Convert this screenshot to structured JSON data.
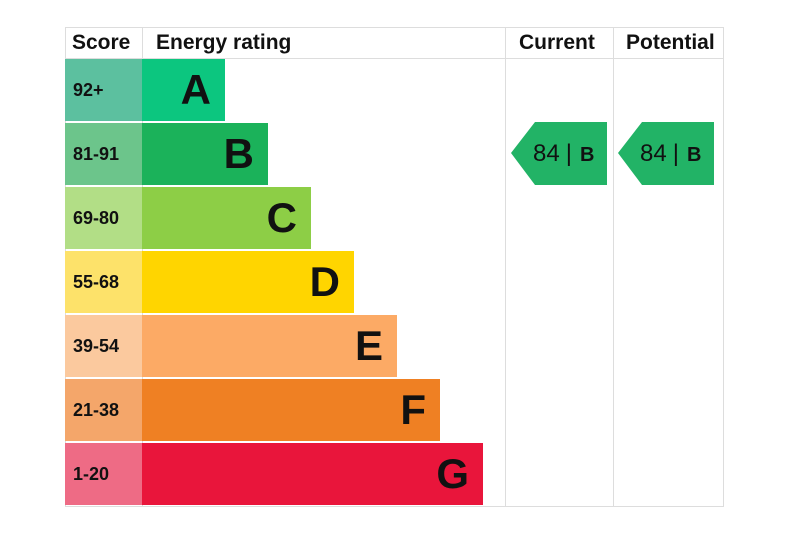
{
  "chart_data": {
    "type": "bar",
    "headers": {
      "score": "Score",
      "rating": "Energy rating",
      "current": "Current",
      "potential": "Potential"
    },
    "categories": [
      "A",
      "B",
      "C",
      "D",
      "E",
      "F",
      "G"
    ],
    "score_ranges": [
      "92+",
      "81-91",
      "69-80",
      "55-68",
      "39-54",
      "21-38",
      "1-20"
    ],
    "bar_colors": [
      "#0cc67f",
      "#1bb25a",
      "#8dce46",
      "#ffd500",
      "#fcaa65",
      "#ef8023",
      "#e9153b"
    ],
    "score_colors": [
      "#5cc09f",
      "#6cc58b",
      "#b2de86",
      "#fde26a",
      "#fbc99e",
      "#f4a66a",
      "#ee6b85"
    ],
    "current": {
      "score": "84",
      "separator": "|",
      "band": "B"
    },
    "potential": {
      "score": "84",
      "separator": "|",
      "band": "B"
    },
    "indicator_color": "#22b366"
  }
}
